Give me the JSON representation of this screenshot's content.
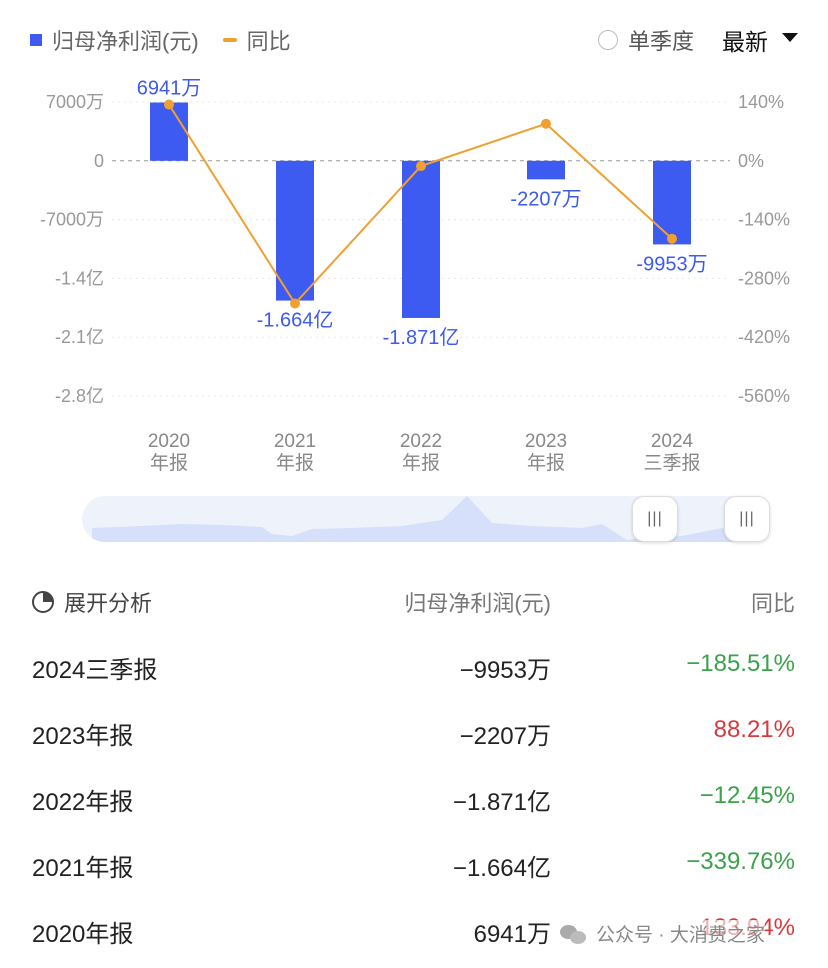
{
  "legend": {
    "bar_label": "归母净利润(元)",
    "line_label": "同比"
  },
  "controls": {
    "mode_label": "单季度",
    "period_label": "最新"
  },
  "chart_data": {
    "type": "bar",
    "categories": [
      [
        "2020",
        "年报"
      ],
      [
        "2021",
        "年报"
      ],
      [
        "2022",
        "年报"
      ],
      [
        "2023",
        "年报"
      ],
      [
        "2024",
        "三季报"
      ]
    ],
    "series": [
      {
        "name": "归母净利润(元)",
        "type": "bar",
        "values": [
          69410000,
          -166400000,
          -187100000,
          -22070000,
          -99530000
        ],
        "labels": [
          "6941万",
          "-1.664亿",
          "-1.871亿",
          "-2207万",
          "-9953万"
        ]
      },
      {
        "name": "同比",
        "type": "line",
        "axis": "right",
        "values": [
          133.94,
          -339.76,
          -12.45,
          88.21,
          -185.51
        ]
      }
    ],
    "y_left": {
      "ticks": [
        70000000,
        0,
        -70000000,
        -140000000,
        -210000000,
        -280000000
      ],
      "tick_labels": [
        "7000万",
        "0",
        "-7000万",
        "-1.4亿",
        "-2.1亿",
        "-2.8亿"
      ],
      "ylim": [
        -280000000,
        70000000
      ]
    },
    "y_right": {
      "ticks": [
        140,
        0,
        -140,
        -280,
        -420,
        -560
      ],
      "tick_labels": [
        "140%",
        "0%",
        "-140%",
        "-280%",
        "-420%",
        "-560%"
      ],
      "ylim": [
        -560,
        140
      ]
    },
    "colors": {
      "bar": "#3d5af1",
      "line": "#f0a030"
    }
  },
  "table": {
    "headers": [
      "展开分析",
      "归母净利润(元)",
      "同比"
    ],
    "rows": [
      {
        "period": "2024三季报",
        "profit": "−9953万",
        "yoy": "−185.51%",
        "trend": "neg"
      },
      {
        "period": "2023年报",
        "profit": "−2207万",
        "yoy": "88.21%",
        "trend": "pos"
      },
      {
        "period": "2022年报",
        "profit": "−1.871亿",
        "yoy": "−12.45%",
        "trend": "neg"
      },
      {
        "period": "2021年报",
        "profit": "−1.664亿",
        "yoy": "−339.76%",
        "trend": "neg"
      },
      {
        "period": "2020年报",
        "profit": "6941万",
        "yoy": "133.94%",
        "trend": "pos"
      }
    ]
  },
  "watermark": {
    "text": "公众号 · 大消费之家"
  }
}
